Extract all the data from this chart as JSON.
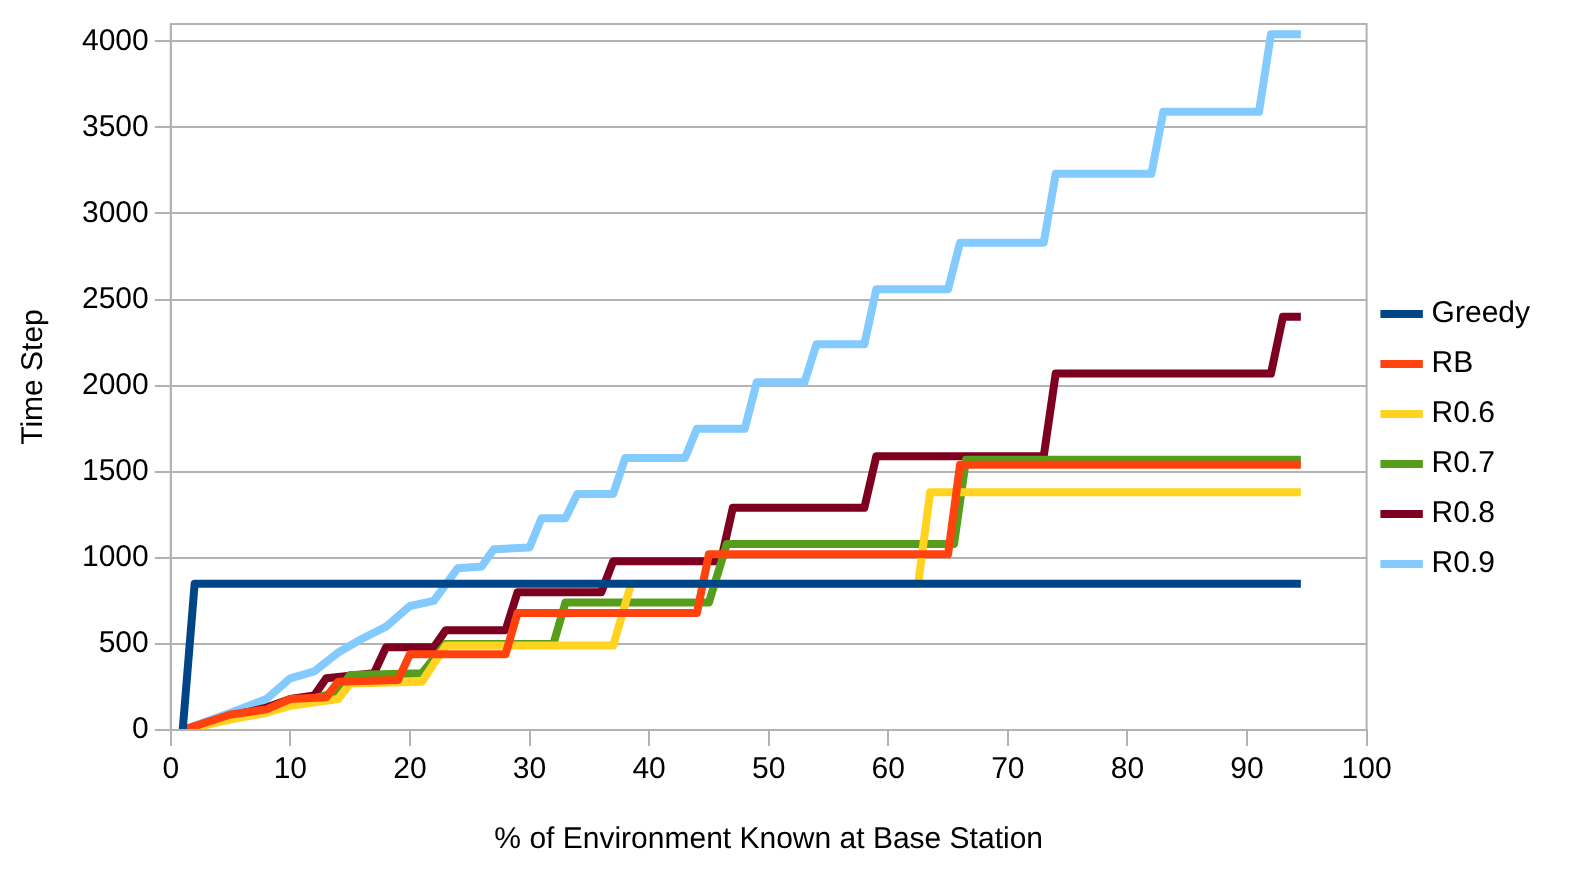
{
  "chart_data": {
    "type": "line",
    "xlabel": "% of Environment Known at Base Station",
    "ylabel": "Time Step",
    "xlim": [
      0,
      100
    ],
    "xticks": [
      0,
      10,
      20,
      30,
      40,
      50,
      60,
      70,
      80,
      90,
      100
    ],
    "ylim": [
      0,
      4100
    ],
    "yticks": [
      0,
      500,
      1000,
      1500,
      2000,
      2500,
      3000,
      3500,
      4000
    ],
    "grid": "y",
    "legend": "right",
    "marker": "none",
    "line_style": "solid",
    "series": [
      {
        "name": "Greedy",
        "color": "#004586",
        "x": [
          1,
          2,
          94.5
        ],
        "values": [
          0,
          850,
          850
        ]
      },
      {
        "name": "RB",
        "color": "#ff420e",
        "x": [
          1,
          5,
          8,
          10,
          13,
          14,
          19,
          20,
          28,
          29,
          44,
          45,
          65,
          66,
          94.5
        ],
        "values": [
          0,
          90,
          120,
          180,
          190,
          280,
          290,
          440,
          440,
          680,
          680,
          1020,
          1020,
          1540,
          1540
        ]
      },
      {
        "name": "R0.6",
        "color": "#ffd320",
        "x": [
          1,
          5,
          8,
          10,
          14,
          15,
          21,
          23,
          37,
          38.5,
          62.5,
          63.5,
          94.5
        ],
        "values": [
          0,
          60,
          100,
          140,
          180,
          270,
          280,
          490,
          490,
          850,
          850,
          1380,
          1380
        ]
      },
      {
        "name": "R0.7",
        "color": "#579d1c",
        "x": [
          8,
          10,
          14,
          15,
          21,
          23,
          32,
          33,
          45,
          46.5,
          65.5,
          66.5,
          94.5
        ],
        "values": [
          110,
          150,
          220,
          320,
          330,
          500,
          500,
          740,
          740,
          1080,
          1080,
          1570,
          1570
        ]
      },
      {
        "name": "R0.8",
        "color": "#7e0021",
        "x": [
          1,
          5,
          8,
          10,
          12,
          13,
          17,
          18,
          22,
          23,
          28,
          29,
          36,
          37,
          46,
          47,
          58,
          59,
          73,
          74,
          92,
          93,
          94.5
        ],
        "values": [
          0,
          80,
          130,
          180,
          200,
          300,
          330,
          480,
          480,
          580,
          580,
          800,
          800,
          980,
          980,
          1290,
          1290,
          1590,
          1590,
          2070,
          2070,
          2400,
          2400
        ]
      },
      {
        "name": "R0.9",
        "color": "#83caff",
        "x": [
          1,
          5,
          8,
          10,
          12,
          14,
          16,
          18,
          20,
          22,
          24,
          26,
          27,
          30,
          31,
          33,
          34,
          37,
          38,
          43,
          44,
          48,
          49,
          53,
          54,
          58,
          59,
          65,
          66,
          73,
          74,
          82,
          83,
          91,
          92,
          94.5
        ],
        "values": [
          0,
          100,
          180,
          300,
          340,
          450,
          530,
          600,
          720,
          750,
          940,
          950,
          1050,
          1060,
          1230,
          1230,
          1370,
          1370,
          1580,
          1580,
          1750,
          1750,
          2020,
          2020,
          2240,
          2240,
          2560,
          2560,
          2830,
          2830,
          3230,
          3230,
          3590,
          3590,
          4040,
          4040
        ]
      }
    ]
  }
}
